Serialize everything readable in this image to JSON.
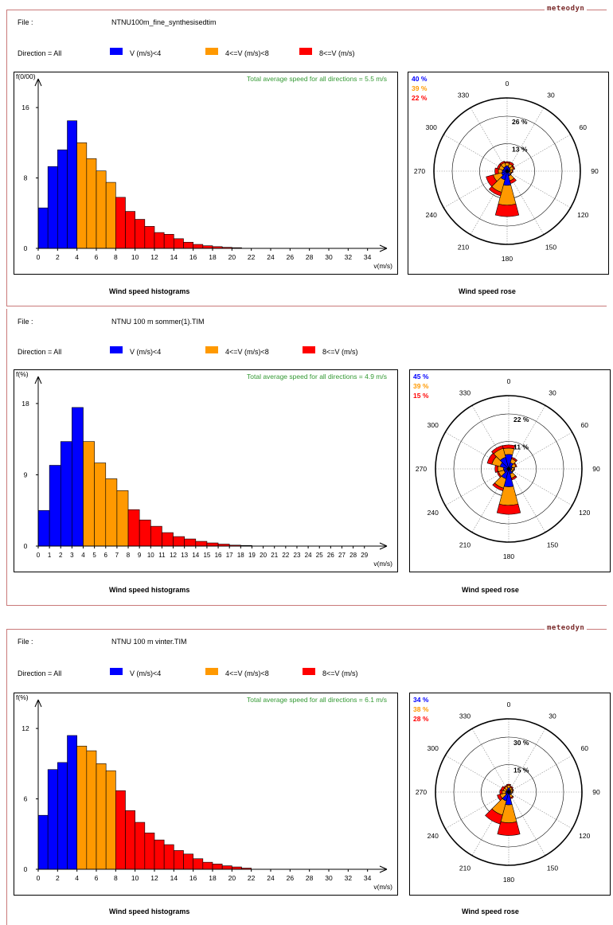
{
  "colors": {
    "slow": "#0000ff",
    "mid": "#ff9900",
    "fast": "#ff0000",
    "green": "#339933",
    "frame": "#c97a7a"
  },
  "logo": "meteodyn",
  "legend": {
    "slow": "V (m/s)<4",
    "mid": "4<=V (m/s)<8",
    "fast": "8<=V (m/s)"
  },
  "panels": [
    {
      "file_label": "File :",
      "file_name": "NTNU100m_fine_synthesisedtim",
      "direction_label": "Direction = All",
      "hist_caption": "Wind speed histograms",
      "rose_caption": "Wind speed rose",
      "chart_data": {
        "type": "bar",
        "ylabel": "f(0/00)",
        "xlabel": "v(m/s)",
        "annotation": "Total average speed for all directions = 5.5 m/s",
        "yticks": [
          0,
          8,
          16
        ],
        "ylim": [
          0,
          18
        ],
        "xmax": 36,
        "xticks": [
          0,
          2,
          4,
          6,
          8,
          10,
          12,
          14,
          16,
          18,
          20,
          22,
          24,
          26,
          28,
          30,
          32,
          34
        ],
        "values": [
          4.6,
          9.3,
          11.2,
          14.5,
          12.0,
          10.2,
          8.8,
          7.5,
          5.8,
          4.2,
          3.3,
          2.5,
          1.8,
          1.6,
          1.1,
          0.7,
          0.45,
          0.3,
          0.2,
          0.12,
          0.08
        ]
      },
      "rose_data": {
        "type": "rose",
        "percentages": [
          "40 %",
          "39 %",
          "22 %"
        ],
        "ring_labels": [
          "13 %",
          "26 %"
        ],
        "ring_values": [
          13,
          26
        ],
        "directions": [
          "0",
          "30",
          "60",
          "90",
          "120",
          "150",
          "180",
          "210",
          "240",
          "270",
          "300",
          "330"
        ],
        "sectors": [
          [
            2.5,
            1.4,
            0.6
          ],
          [
            2.0,
            1.6,
            0.9
          ],
          [
            1.6,
            1.6,
            0.6
          ],
          [
            1.4,
            1.0,
            0.4
          ],
          [
            1.2,
            0.8,
            0.3
          ],
          [
            2.4,
            2.3,
            1.4
          ],
          [
            6.7,
            9.4,
            5.4
          ],
          [
            4.3,
            6.0,
            1.8
          ],
          [
            2.8,
            4.0,
            3.5
          ],
          [
            2.3,
            1.9,
            1.6
          ],
          [
            1.9,
            2.1,
            0.9
          ],
          [
            2.3,
            1.9,
            0.7
          ]
        ]
      }
    },
    {
      "file_label": "File :",
      "file_name": "NTNU 100 m sommer(1).TIM",
      "direction_label": "Direction = All",
      "hist_caption": "Wind speed histograms",
      "rose_caption": "Wind speed rose",
      "chart_data": {
        "type": "bar",
        "ylabel": "f(%)",
        "xlabel": "v(m/s)",
        "annotation": "Total average speed for all directions = 4.9 m/s",
        "yticks": [
          0,
          9,
          18
        ],
        "ylim": [
          0,
          20
        ],
        "xmax": 31,
        "xticks": [
          0,
          1,
          2,
          3,
          4,
          5,
          6,
          7,
          8,
          9,
          10,
          11,
          12,
          13,
          14,
          15,
          16,
          17,
          18,
          19,
          20,
          21,
          22,
          23,
          24,
          25,
          26,
          27,
          28,
          29
        ],
        "values": [
          4.5,
          10.2,
          13.2,
          17.5,
          13.2,
          10.5,
          8.5,
          7.0,
          4.6,
          3.3,
          2.5,
          1.7,
          1.2,
          0.9,
          0.6,
          0.4,
          0.25,
          0.12,
          0.08
        ]
      },
      "rose_data": {
        "type": "rose",
        "percentages": [
          "45 %",
          "39 %",
          "15 %"
        ],
        "ring_labels": [
          "11 %",
          "22 %"
        ],
        "ring_values": [
          11,
          22
        ],
        "directions": [
          "0",
          "30",
          "60",
          "90",
          "120",
          "150",
          "180",
          "210",
          "240",
          "270",
          "300",
          "330"
        ],
        "sectors": [
          [
            5.8,
            2.5,
            1.3
          ],
          [
            2.6,
            1.6,
            0.6
          ],
          [
            1.6,
            1.4,
            0.4
          ],
          [
            1.2,
            0.9,
            0.3
          ],
          [
            1.1,
            0.7,
            0.2
          ],
          [
            2.1,
            1.8,
            0.7
          ],
          [
            7.2,
            7.4,
            3.6
          ],
          [
            4.1,
            3.9,
            1.1
          ],
          [
            2.0,
            2.2,
            0.6
          ],
          [
            2.1,
            2.3,
            1.1
          ],
          [
            3.6,
            3.4,
            1.9
          ],
          [
            4.8,
            3.7,
            1.2
          ]
        ]
      }
    },
    {
      "file_label": "File :",
      "file_name": "NTNU 100 m vinter.TIM",
      "direction_label": "Direction = All",
      "hist_caption": "Wind speed histograms",
      "rose_caption": "Wind speed rose",
      "chart_data": {
        "type": "bar",
        "ylabel": "f(%)",
        "xlabel": "v(m/s)",
        "annotation": "Total average speed for all directions = 6.1 m/s",
        "yticks": [
          0,
          6,
          12
        ],
        "ylim": [
          0,
          13.5
        ],
        "xmax": 36,
        "xticks": [
          0,
          2,
          4,
          6,
          8,
          10,
          12,
          14,
          16,
          18,
          20,
          22,
          24,
          26,
          28,
          30,
          32,
          34
        ],
        "values": [
          4.6,
          8.5,
          9.1,
          11.4,
          10.5,
          10.1,
          9.0,
          8.4,
          6.7,
          5.0,
          4.0,
          3.1,
          2.5,
          2.1,
          1.6,
          1.3,
          0.9,
          0.6,
          0.45,
          0.3,
          0.2,
          0.1
        ]
      },
      "rose_data": {
        "type": "rose",
        "percentages": [
          "34 %",
          "38 %",
          "28 %"
        ],
        "ring_labels": [
          "15 %",
          "30 %"
        ],
        "ring_values": [
          15,
          30
        ],
        "directions": [
          "0",
          "30",
          "60",
          "90",
          "120",
          "150",
          "180",
          "210",
          "240",
          "270",
          "300",
          "330"
        ],
        "sectors": [
          [
            2.3,
            1.4,
            0.6
          ],
          [
            1.5,
            1.3,
            0.6
          ],
          [
            1.2,
            1.2,
            0.4
          ],
          [
            1.1,
            0.9,
            0.3
          ],
          [
            0.9,
            0.6,
            0.2
          ],
          [
            1.6,
            1.6,
            0.6
          ],
          [
            7.0,
            9.8,
            6.9
          ],
          [
            5.0,
            8.0,
            5.1
          ],
          [
            1.9,
            3.0,
            1.6
          ],
          [
            1.6,
            2.0,
            1.3
          ],
          [
            1.4,
            1.7,
            1.4
          ],
          [
            1.6,
            1.6,
            0.6
          ]
        ]
      }
    }
  ]
}
